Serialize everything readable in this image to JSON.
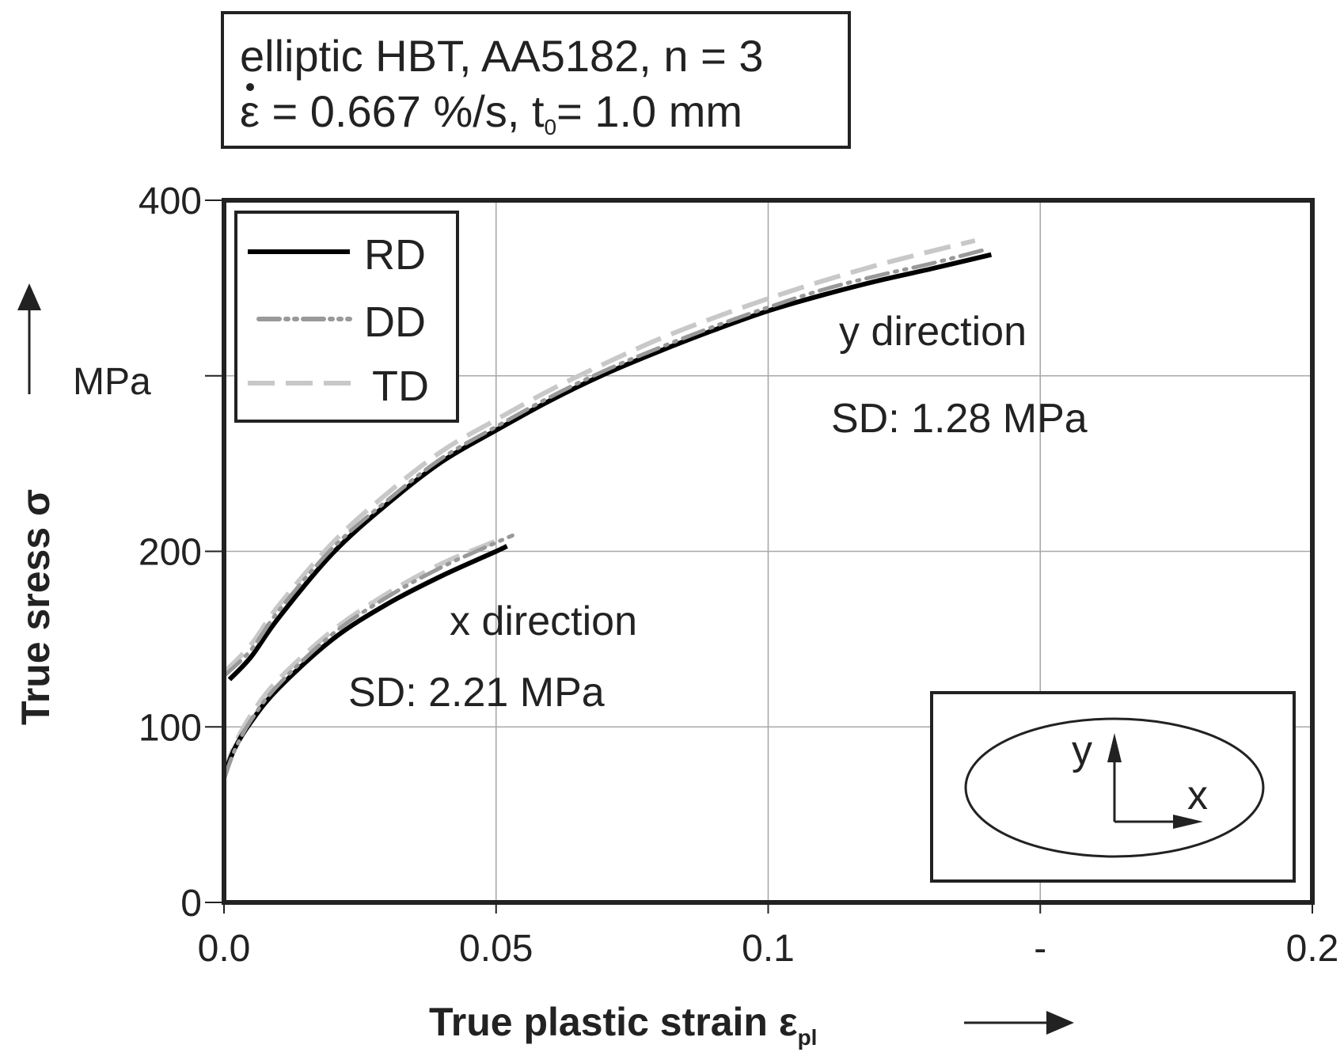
{
  "chart_data": {
    "type": "line",
    "title_line1": "elliptic HBT, AA5182, n = 3",
    "title_line2": {
      "rate_symbol": "ε",
      "rate_text": " = 0.667 %/s, t",
      "thickness_subscript": "0",
      "thickness_text": "= 1.0 mm"
    },
    "ylabel": "True sress σ",
    "yunit": "MPa",
    "xlabel": "True plastic strain ε",
    "xlabel_subscript": "pl",
    "xlim": [
      0,
      0.2
    ],
    "ylim": [
      0,
      400
    ],
    "x_ticks": [
      0,
      0.05,
      0.1,
      0.15,
      0.2
    ],
    "x_tick_labels": [
      "0.0",
      "0.05",
      "0.1",
      "-",
      "0.2"
    ],
    "y_ticks": [
      0,
      100,
      200,
      300,
      400
    ],
    "y_tick_labels": [
      "0",
      "100",
      "200",
      "",
      "400"
    ],
    "grid": true,
    "legend_position": "top-left",
    "series": [
      {
        "name": "RD",
        "style": "solid",
        "color": "#000000",
        "curves": [
          {
            "direction": "y",
            "x": [
              0.001,
              0.005,
              0.01,
              0.02,
              0.03,
              0.04,
              0.05,
              0.06,
              0.07,
              0.08,
              0.09,
              0.1,
              0.11,
              0.12,
              0.13,
              0.141
            ],
            "y": [
              127,
              140,
              162,
              199,
              227,
              251,
              269,
              286,
              301,
              314,
              326,
              337,
              346,
              354,
              361,
              369
            ]
          },
          {
            "direction": "x",
            "x": [
              0.0,
              0.002,
              0.005,
              0.01,
              0.02,
              0.03,
              0.04,
              0.05,
              0.052
            ],
            "y": [
              72,
              88,
              103,
              122,
              150,
              170,
              186,
              200,
              203
            ]
          }
        ]
      },
      {
        "name": "DD",
        "style": "dash-dot",
        "color": "#999999",
        "curves": [
          {
            "direction": "y",
            "x": [
              0.0,
              0.005,
              0.01,
              0.02,
              0.03,
              0.04,
              0.05,
              0.06,
              0.07,
              0.08,
              0.09,
              0.1,
              0.11,
              0.12,
              0.13,
              0.14
            ],
            "y": [
              129,
              144,
              166,
              202,
              229,
              253,
              271,
              288,
              303,
              316,
              328,
              339,
              349,
              357,
              364,
              372
            ]
          },
          {
            "direction": "x",
            "x": [
              0.0,
              0.002,
              0.005,
              0.01,
              0.02,
              0.03,
              0.04,
              0.05,
              0.053
            ],
            "y": [
              70,
              87,
              104,
              124,
              153,
              174,
              191,
              205,
              209
            ]
          }
        ]
      },
      {
        "name": "TD",
        "style": "dashed",
        "color": "#c8c8c8",
        "curves": [
          {
            "direction": "y",
            "x": [
              0.0,
              0.005,
              0.01,
              0.02,
              0.03,
              0.04,
              0.05,
              0.06,
              0.07,
              0.08,
              0.09,
              0.1,
              0.11,
              0.12,
              0.13,
              0.138
            ],
            "y": [
              131,
              147,
              169,
              205,
              233,
              257,
              275,
              292,
              307,
              321,
              333,
              344,
              354,
              363,
              371,
              377
            ]
          },
          {
            "direction": "x",
            "x": [
              0.0,
              0.002,
              0.005,
              0.01,
              0.02,
              0.03,
              0.04,
              0.05,
              0.051
            ],
            "y": [
              73,
              90,
              107,
              127,
              155,
              176,
              193,
              206,
              208
            ]
          }
        ]
      }
    ],
    "annotations": [
      {
        "name": "y",
        "label": "y direction",
        "sd": "SD: 1.28 MPa"
      },
      {
        "name": "x",
        "label": "x direction",
        "sd": "SD: 2.21 MPa"
      }
    ],
    "specimen_inset": {
      "axis_y_label": "y",
      "axis_x_label": "x"
    }
  }
}
